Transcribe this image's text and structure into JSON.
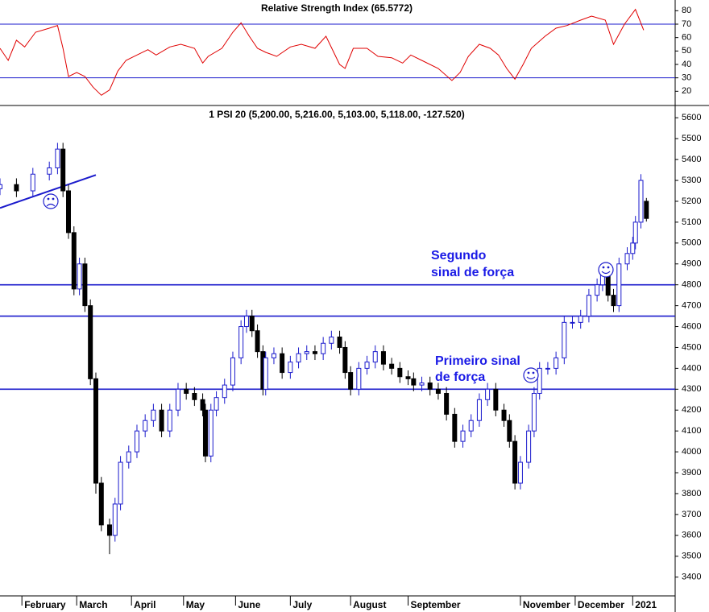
{
  "chart_data": [
    {
      "type": "line",
      "title": "Relative Strength Index (65.5772)",
      "x": [
        0,
        3,
        6,
        9,
        13,
        18,
        21,
        23,
        25,
        28,
        31,
        34,
        37,
        40,
        43,
        46,
        50,
        54,
        57,
        62,
        66,
        71,
        74,
        76,
        81,
        85,
        88,
        91,
        94,
        97,
        101,
        106,
        110,
        115,
        119,
        124,
        126,
        129,
        134,
        138,
        143,
        147,
        150,
        154,
        160,
        165,
        168,
        171,
        175,
        179,
        182,
        185,
        188,
        191,
        194,
        199,
        203,
        207,
        212,
        216,
        221,
        224,
        228,
        232,
        235
      ],
      "series": [
        {
          "name": "RSI",
          "color": "#e00000",
          "values": [
            52,
            43,
            58,
            53,
            64,
            67,
            69,
            52,
            31,
            34,
            31,
            23,
            17,
            21,
            35,
            43,
            47,
            51,
            47,
            53,
            55,
            52,
            41,
            46,
            52,
            64,
            71,
            61,
            52,
            49,
            46,
            53,
            55,
            52,
            61,
            40,
            37,
            52,
            52,
            46,
            45,
            41,
            47,
            43,
            37,
            28,
            34,
            46,
            55,
            52,
            47,
            37,
            29,
            40,
            52,
            61,
            67,
            69,
            73,
            76,
            73,
            55,
            70,
            81,
            65.5772
          ]
        }
      ],
      "hlines": [
        70,
        30
      ],
      "hline_color": "#1a1acc",
      "xlim": [
        0,
        246.5
      ],
      "ylim": [
        10,
        88
      ],
      "yticks": [
        20,
        30,
        40,
        50,
        60,
        70,
        80
      ]
    },
    {
      "type": "candlestick",
      "title": "1 PSI 20 (5,200.00, 5,216.00, 5,103.00, 5,118.00, -127.520)",
      "x": [
        0,
        6,
        12,
        18,
        21,
        23,
        25,
        27,
        29,
        31,
        33,
        35,
        37,
        40,
        42,
        44,
        47,
        50,
        53,
        56,
        59,
        62,
        65,
        68,
        71,
        74,
        75,
        77,
        79,
        82,
        85,
        88,
        90,
        92,
        94,
        96,
        97,
        100,
        103,
        106,
        109,
        112,
        115,
        118,
        121,
        124,
        126,
        128,
        131,
        134,
        137,
        140,
        143,
        146,
        149,
        151,
        154,
        157,
        160,
        163,
        166,
        169,
        172,
        175,
        178,
        181,
        184,
        186,
        188,
        190,
        193,
        195,
        197,
        200,
        203,
        206,
        209,
        212,
        215,
        218,
        220,
        222,
        224,
        226,
        229,
        231,
        232,
        234,
        236
      ],
      "open": [
        5260,
        5280,
        5250,
        5330,
        5360,
        5450,
        5250,
        5050,
        4780,
        4900,
        4700,
        4350,
        3850,
        3650,
        3600,
        3750,
        3950,
        4000,
        4100,
        4150,
        4200,
        4100,
        4200,
        4300,
        4280,
        4250,
        4200,
        3980,
        4200,
        4260,
        4320,
        4450,
        4600,
        4650,
        4580,
        4480,
        4300,
        4450,
        4470,
        4380,
        4430,
        4470,
        4480,
        4470,
        4520,
        4550,
        4500,
        4380,
        4300,
        4400,
        4430,
        4480,
        4420,
        4400,
        4360,
        4350,
        4320,
        4330,
        4300,
        4280,
        4180,
        4050,
        4100,
        4150,
        4250,
        4300,
        4200,
        4150,
        4050,
        3850,
        3950,
        4100,
        4280,
        4400,
        4400,
        4450,
        4620,
        4620,
        4650,
        4750,
        4800,
        4850,
        4750,
        4700,
        4900,
        4950,
        5000,
        5100,
        5200
      ],
      "high": [
        5310,
        5310,
        5360,
        5390,
        5480,
        5480,
        5280,
        5080,
        4930,
        4930,
        4730,
        4380,
        3880,
        3680,
        3780,
        3980,
        4030,
        4130,
        4180,
        4230,
        4230,
        4230,
        4330,
        4330,
        4310,
        4280,
        4230,
        4230,
        4290,
        4350,
        4480,
        4630,
        4680,
        4680,
        4610,
        4510,
        4480,
        4500,
        4500,
        4460,
        4500,
        4510,
        4510,
        4550,
        4580,
        4580,
        4530,
        4410,
        4430,
        4460,
        4510,
        4510,
        4450,
        4430,
        4390,
        4380,
        4360,
        4360,
        4330,
        4310,
        4210,
        4130,
        4180,
        4280,
        4330,
        4330,
        4230,
        4180,
        4080,
        3980,
        4130,
        4310,
        4430,
        4430,
        4480,
        4650,
        4650,
        4680,
        4780,
        4830,
        4880,
        4880,
        4780,
        4930,
        4980,
        5030,
        5130,
        5330,
        5216
      ],
      "low": [
        5230,
        5220,
        5220,
        5300,
        5330,
        5220,
        5020,
        4750,
        4750,
        4670,
        4320,
        3800,
        3620,
        3510,
        3570,
        3720,
        3920,
        3970,
        4070,
        4120,
        4070,
        4070,
        4170,
        4250,
        4220,
        4170,
        3950,
        3950,
        4170,
        4230,
        4290,
        4420,
        4570,
        4550,
        4450,
        4270,
        4270,
        4420,
        4350,
        4350,
        4400,
        4440,
        4440,
        4440,
        4490,
        4470,
        4350,
        4270,
        4270,
        4370,
        4400,
        4390,
        4370,
        4330,
        4320,
        4290,
        4290,
        4270,
        4250,
        4150,
        4020,
        4020,
        4070,
        4120,
        4220,
        4170,
        4120,
        4020,
        3820,
        3820,
        3920,
        4070,
        4250,
        4370,
        4370,
        4420,
        4590,
        4590,
        4620,
        4720,
        4770,
        4720,
        4670,
        4670,
        4870,
        4920,
        4970,
        5070,
        5103
      ],
      "close": [
        5280,
        5250,
        5330,
        5360,
        5450,
        5250,
        5050,
        4780,
        4900,
        4700,
        4350,
        3850,
        3650,
        3600,
        3750,
        3950,
        4000,
        4100,
        4150,
        4200,
        4100,
        4200,
        4300,
        4280,
        4250,
        4200,
        3980,
        4200,
        4260,
        4320,
        4450,
        4600,
        4650,
        4580,
        4480,
        4300,
        4450,
        4470,
        4380,
        4430,
        4470,
        4480,
        4470,
        4520,
        4550,
        4500,
        4380,
        4300,
        4400,
        4430,
        4480,
        4420,
        4400,
        4360,
        4350,
        4320,
        4330,
        4300,
        4280,
        4180,
        4050,
        4100,
        4150,
        4250,
        4300,
        4200,
        4150,
        4050,
        3850,
        3950,
        4100,
        4280,
        4400,
        4400,
        4450,
        4620,
        4620,
        4650,
        4750,
        4800,
        4850,
        4750,
        4700,
        4900,
        4950,
        5000,
        5100,
        5300,
        5118
      ],
      "up_color": "#1a1acc",
      "down_color": "#000000",
      "hlines": [
        4800,
        4650,
        4300
      ],
      "hline_color": "#1a1acc",
      "trendline": {
        "x": [
          0,
          35
        ],
        "y": [
          5168,
          5326
        ]
      },
      "annotations": [
        "Segundo",
        "sinal de força",
        "Primeiro sinal",
        "de força"
      ],
      "xlim": [
        0,
        246.5
      ],
      "ylim": [
        3310,
        5655
      ],
      "yticks": [
        3400,
        3500,
        3600,
        3700,
        3800,
        3900,
        4000,
        4100,
        4200,
        4300,
        4400,
        4500,
        4600,
        4700,
        4800,
        4900,
        5000,
        5100,
        5200,
        5300,
        5400,
        5500,
        5600
      ],
      "xticks": [
        {
          "value": 8,
          "label": "February"
        },
        {
          "value": 28,
          "label": "March"
        },
        {
          "value": 48,
          "label": "April"
        },
        {
          "value": 67,
          "label": "May"
        },
        {
          "value": 86,
          "label": "June"
        },
        {
          "value": 106,
          "label": "July"
        },
        {
          "value": 128,
          "label": "August"
        },
        {
          "value": 149,
          "label": "September"
        },
        {
          "value": 190,
          "label": "November"
        },
        {
          "value": 210,
          "label": "December"
        },
        {
          "value": 231,
          "label": "2021"
        }
      ]
    }
  ]
}
